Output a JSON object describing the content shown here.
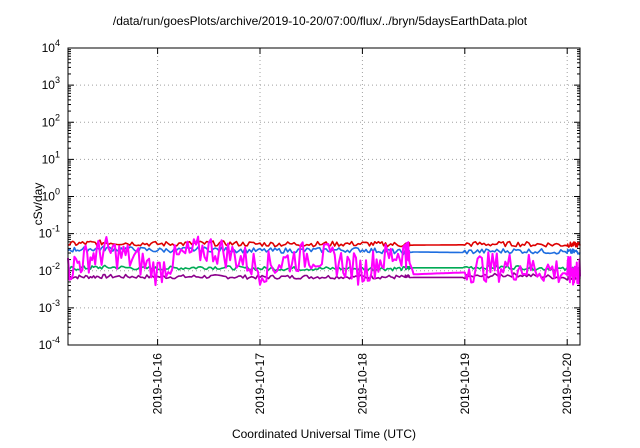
{
  "chart_data": {
    "type": "line",
    "title": "/data/run/goesPlots/archive/2019-10-20/07:00/flux/../bryn/5daysEarthData.plot",
    "xlabel": "Coordinated Universal Time (UTC)",
    "ylabel": "cSv/day",
    "yscale": "log",
    "ylim": [
      0.0001,
      10000
    ],
    "xlim": [
      "2019-10-15T03:00",
      "2019-10-20T03:00"
    ],
    "grid": true,
    "x_ticks": [
      "2019-10-16",
      "2019-10-17",
      "2019-10-18",
      "2019-10-19",
      "2019-10-20"
    ],
    "y_ticks": [
      {
        "base": "10",
        "exp": "-4"
      },
      {
        "base": "10",
        "exp": "-3"
      },
      {
        "base": "10",
        "exp": "-2"
      },
      {
        "base": "10",
        "exp": "-1"
      },
      {
        "base": "10",
        "exp": "0"
      },
      {
        "base": "10",
        "exp": "1"
      },
      {
        "base": "10",
        "exp": "2"
      },
      {
        "base": "10",
        "exp": "3"
      },
      {
        "base": "10",
        "exp": "4"
      }
    ],
    "series": [
      {
        "color": "#8b008b",
        "x": [
          "2019-10-15T03:00",
          "2019-10-15T12:00",
          "2019-10-16T00:00",
          "2019-10-16T12:00",
          "2019-10-17T00:00",
          "2019-10-17T12:00",
          "2019-10-18T00:00",
          "2019-10-18T10:00",
          "2019-10-18T12:00",
          "2019-10-19T00:00",
          "2019-10-19T12:00",
          "2019-10-20T00:00",
          "2019-10-20T03:00"
        ],
        "y": [
          0.0065,
          0.0068,
          0.0066,
          0.0067,
          0.0065,
          0.0066,
          0.0066,
          0.0065,
          0.0066,
          0.0066,
          0.0075,
          0.0062,
          0.0062
        ]
      },
      {
        "color": "#00aa55",
        "x": [
          "2019-10-15T03:00",
          "2019-10-15T12:00",
          "2019-10-16T00:00",
          "2019-10-16T12:00",
          "2019-10-17T00:00",
          "2019-10-17T12:00",
          "2019-10-18T00:00",
          "2019-10-18T10:00",
          "2019-10-18T12:00",
          "2019-10-19T00:00",
          "2019-10-19T12:00",
          "2019-10-20T00:00",
          "2019-10-20T03:00"
        ],
        "y": [
          0.011,
          0.012,
          0.011,
          0.012,
          0.011,
          0.011,
          0.011,
          0.011,
          0.012,
          0.012,
          0.012,
          0.0105,
          0.0105
        ]
      },
      {
        "color": "#dd0000",
        "x": [
          "2019-10-15T03:00",
          "2019-10-15T12:00",
          "2019-10-16T00:00",
          "2019-10-16T12:00",
          "2019-10-17T00:00",
          "2019-10-17T12:00",
          "2019-10-18T00:00",
          "2019-10-18T10:00",
          "2019-10-18T12:00",
          "2019-10-19T00:00",
          "2019-10-19T12:00",
          "2019-10-20T00:00",
          "2019-10-20T03:00"
        ],
        "y": [
          0.05,
          0.055,
          0.05,
          0.052,
          0.05,
          0.05,
          0.051,
          0.048,
          0.049,
          0.05,
          0.05,
          0.048,
          0.048
        ]
      },
      {
        "color": "#1e6ee0",
        "x": [
          "2019-10-15T03:00",
          "2019-10-15T12:00",
          "2019-10-16T00:00",
          "2019-10-16T12:00",
          "2019-10-17T00:00",
          "2019-10-17T12:00",
          "2019-10-18T00:00",
          "2019-10-18T10:00",
          "2019-10-18T12:00",
          "2019-10-19T00:00",
          "2019-10-19T12:00",
          "2019-10-20T00:00",
          "2019-10-20T03:00"
        ],
        "y": [
          0.035,
          0.038,
          0.034,
          0.036,
          0.033,
          0.034,
          0.035,
          0.03,
          0.032,
          0.031,
          0.033,
          0.031,
          0.031
        ]
      },
      {
        "color": "#ff00ff",
        "x": [
          "2019-10-15T03:00",
          "2019-10-15T12:00",
          "2019-10-16T00:00",
          "2019-10-16T12:00",
          "2019-10-17T00:00",
          "2019-10-17T12:00",
          "2019-10-18T00:00",
          "2019-10-18T10:00",
          "2019-10-18T12:00",
          "2019-10-19T00:00",
          "2019-10-19T12:00",
          "2019-10-20T00:00",
          "2019-10-20T03:00"
        ],
        "y": [
          0.008,
          0.025,
          0.007,
          0.03,
          0.008,
          0.02,
          0.007,
          0.025,
          0.008,
          0.009,
          0.01,
          0.007,
          0.007
        ]
      }
    ]
  }
}
